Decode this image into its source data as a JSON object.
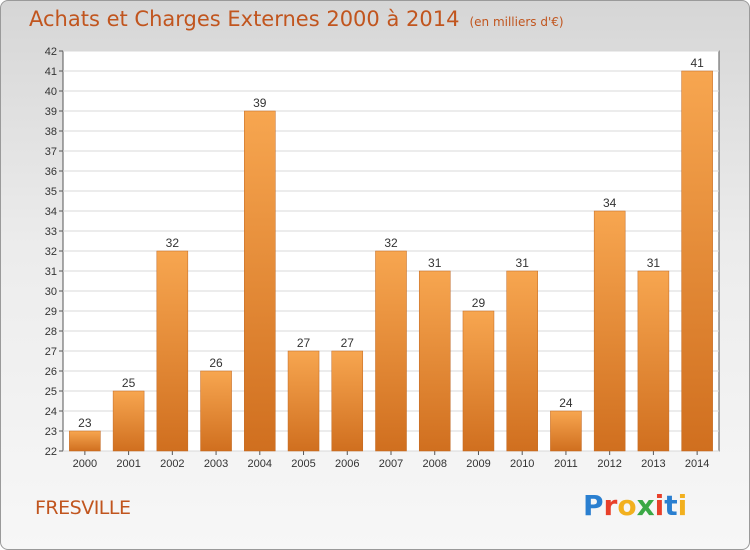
{
  "header": {
    "title": "Achats et Charges Externes 2000 à 2014",
    "subtitle": "(en milliers d'€)"
  },
  "footer": {
    "commune": "FRESVILLE",
    "logo": "Proxiti"
  },
  "colors": {
    "accent": "#c1551e",
    "bar_top": "#f7a650",
    "bar_bottom": "#d06f1f"
  },
  "chart_data": {
    "type": "bar",
    "title": "Achats et Charges Externes 2000 à 2014",
    "subtitle": "(en milliers d'€)",
    "categories": [
      "2000",
      "2001",
      "2002",
      "2003",
      "2004",
      "2005",
      "2006",
      "2007",
      "2008",
      "2009",
      "2010",
      "2011",
      "2012",
      "2013",
      "2014"
    ],
    "values": [
      23,
      25,
      32,
      26,
      39,
      27,
      27,
      32,
      31,
      29,
      31,
      24,
      34,
      31,
      41
    ],
    "xlabel": "",
    "ylabel": "",
    "ylim": [
      22,
      42
    ],
    "yticks": [
      22,
      23,
      24,
      25,
      26,
      27,
      28,
      29,
      30,
      31,
      32,
      33,
      34,
      35,
      36,
      37,
      38,
      39,
      40,
      41,
      42
    ],
    "grid": true
  }
}
